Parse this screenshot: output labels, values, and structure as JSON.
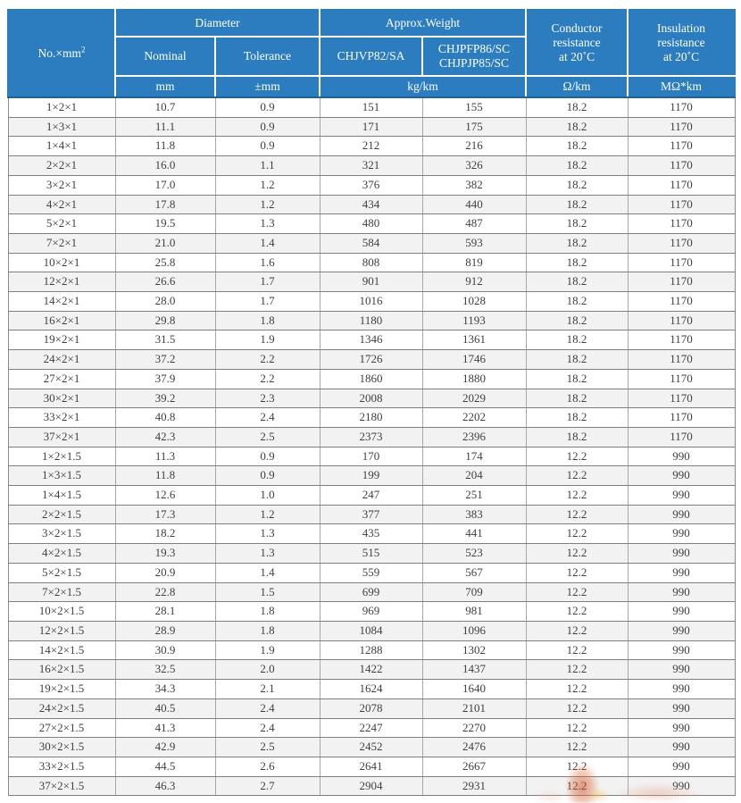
{
  "colors": {
    "header_bg": "#2b7dbf",
    "header_text": "#ffffff",
    "header_divider": "#ffffff",
    "header_bottom_line": "#1f639c",
    "row_bg": "#ffffff",
    "row_alt_bg": "#f2f2f2",
    "grid_line_horizontal": "#7f7f7f",
    "grid_line_vertical": "#a8a8a8",
    "data_text": "#3f3f3f",
    "watermark_orange": "#d14a26",
    "watermark_pink": "#e79c88"
  },
  "table": {
    "header": {
      "col_no": {
        "label": "No.×mm",
        "sup": "2"
      },
      "diameter": {
        "label": "Diameter",
        "nominal": "Nominal",
        "tolerance": "Tolerance",
        "unit_nominal": "mm",
        "unit_tolerance": "±mm"
      },
      "weight": {
        "label": "Approx.Weight",
        "col1": "CHJVP82/SA",
        "col2_line1": "CHJPFP86/SC",
        "col2_line2": "CHJPJP85/SC",
        "unit": "kg/km"
      },
      "conductor": {
        "line1": "Conductor",
        "line2": "resistance",
        "line3": "at 20˚C",
        "unit": "Ω/km"
      },
      "insulation": {
        "line1": "Insulation",
        "line2": "resistance",
        "line3": "at 20˚C",
        "unit": "MΩ*km"
      }
    },
    "rows": [
      [
        "1×2×1",
        "10.7",
        "0.9",
        "151",
        "155",
        "18.2",
        "1170"
      ],
      [
        "1×3×1",
        "11.1",
        "0.9",
        "171",
        "175",
        "18.2",
        "1170"
      ],
      [
        "1×4×1",
        "11.8",
        "0.9",
        "212",
        "216",
        "18.2",
        "1170"
      ],
      [
        "2×2×1",
        "16.0",
        "1.1",
        "321",
        "326",
        "18.2",
        "1170"
      ],
      [
        "3×2×1",
        "17.0",
        "1.2",
        "376",
        "382",
        "18.2",
        "1170"
      ],
      [
        "4×2×1",
        "17.8",
        "1.2",
        "434",
        "440",
        "18.2",
        "1170"
      ],
      [
        "5×2×1",
        "19.5",
        "1.3",
        "480",
        "487",
        "18.2",
        "1170"
      ],
      [
        "7×2×1",
        "21.0",
        "1.4",
        "584",
        "593",
        "18.2",
        "1170"
      ],
      [
        "10×2×1",
        "25.8",
        "1.6",
        "808",
        "819",
        "18.2",
        "1170"
      ],
      [
        "12×2×1",
        "26.6",
        "1.7",
        "901",
        "912",
        "18.2",
        "1170"
      ],
      [
        "14×2×1",
        "28.0",
        "1.7",
        "1016",
        "1028",
        "18.2",
        "1170"
      ],
      [
        "16×2×1",
        "29.8",
        "1.8",
        "1180",
        "1193",
        "18.2",
        "1170"
      ],
      [
        "19×2×1",
        "31.5",
        "1.9",
        "1346",
        "1361",
        "18.2",
        "1170"
      ],
      [
        "24×2×1",
        "37.2",
        "2.2",
        "1726",
        "1746",
        "18.2",
        "1170"
      ],
      [
        "27×2×1",
        "37.9",
        "2.2",
        "1860",
        "1880",
        "18.2",
        "1170"
      ],
      [
        "30×2×1",
        "39.2",
        "2.3",
        "2008",
        "2029",
        "18.2",
        "1170"
      ],
      [
        "33×2×1",
        "40.8",
        "2.4",
        "2180",
        "2202",
        "18.2",
        "1170"
      ],
      [
        "37×2×1",
        "42.3",
        "2.5",
        "2373",
        "2396",
        "18.2",
        "1170"
      ],
      [
        "1×2×1.5",
        "11.3",
        "0.9",
        "170",
        "174",
        "12.2",
        "990"
      ],
      [
        "1×3×1.5",
        "11.8",
        "0.9",
        "199",
        "204",
        "12.2",
        "990"
      ],
      [
        "1×4×1.5",
        "12.6",
        "1.0",
        "247",
        "251",
        "12.2",
        "990"
      ],
      [
        "2×2×1.5",
        "17.3",
        "1.2",
        "377",
        "383",
        "12.2",
        "990"
      ],
      [
        "3×2×1.5",
        "18.2",
        "1.3",
        "435",
        "441",
        "12.2",
        "990"
      ],
      [
        "4×2×1.5",
        "19.3",
        "1.3",
        "515",
        "523",
        "12.2",
        "990"
      ],
      [
        "5×2×1.5",
        "20.9",
        "1.4",
        "559",
        "567",
        "12.2",
        "990"
      ],
      [
        "7×2×1.5",
        "22.8",
        "1.5",
        "699",
        "709",
        "12.2",
        "990"
      ],
      [
        "10×2×1.5",
        "28.1",
        "1.8",
        "969",
        "981",
        "12.2",
        "990"
      ],
      [
        "12×2×1.5",
        "28.9",
        "1.8",
        "1084",
        "1096",
        "12.2",
        "990"
      ],
      [
        "14×2×1.5",
        "30.9",
        "1.9",
        "1288",
        "1302",
        "12.2",
        "990"
      ],
      [
        "16×2×1.5",
        "32.5",
        "2.0",
        "1422",
        "1437",
        "12.2",
        "990"
      ],
      [
        "19×2×1.5",
        "34.3",
        "2.1",
        "1624",
        "1640",
        "12.2",
        "990"
      ],
      [
        "24×2×1.5",
        "40.5",
        "2.4",
        "2078",
        "2101",
        "12.2",
        "990"
      ],
      [
        "27×2×1.5",
        "41.3",
        "2.4",
        "2247",
        "2270",
        "12.2",
        "990"
      ],
      [
        "30×2×1.5",
        "42.9",
        "2.5",
        "2452",
        "2476",
        "12.2",
        "990"
      ],
      [
        "33×2×1.5",
        "44.5",
        "2.6",
        "2641",
        "2667",
        "12.2",
        "990"
      ],
      [
        "37×2×1.5",
        "46.3",
        "2.7",
        "2904",
        "2931",
        "12.2",
        "990"
      ]
    ]
  }
}
